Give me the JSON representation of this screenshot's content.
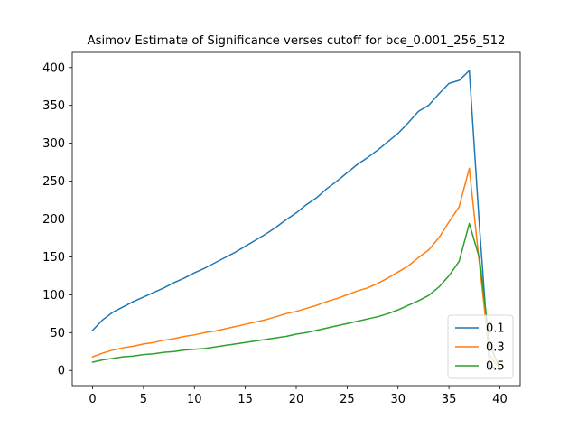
{
  "chart_data": {
    "type": "line",
    "title": "Asimov Estimate of Significance verses cutoff for bce_0.001_256_512",
    "xlabel": "",
    "ylabel": "",
    "xlim": [
      -2,
      42
    ],
    "ylim": [
      -20,
      420
    ],
    "xticks": [
      0,
      5,
      10,
      15,
      20,
      25,
      30,
      35,
      40
    ],
    "yticks": [
      0,
      50,
      100,
      150,
      200,
      250,
      300,
      350,
      400
    ],
    "grid": false,
    "legend_position": "lower-right",
    "series": [
      {
        "name": "0.1",
        "color": "#1f77b4",
        "x": [
          0,
          1,
          2,
          3,
          4,
          5,
          6,
          7,
          8,
          9,
          10,
          11,
          12,
          13,
          14,
          15,
          16,
          17,
          18,
          19,
          20,
          21,
          22,
          23,
          24,
          25,
          26,
          27,
          28,
          29,
          30,
          31,
          32,
          33,
          34,
          35,
          36,
          37,
          38,
          39,
          40
        ],
        "y": [
          53,
          67,
          77,
          84,
          91,
          97,
          103,
          109,
          116,
          122,
          129,
          135,
          142,
          149,
          156,
          164,
          172,
          180,
          189,
          199,
          208,
          219,
          228,
          240,
          250,
          261,
          272,
          281,
          291,
          302,
          313,
          327,
          342,
          350,
          365,
          379,
          383,
          396,
          190,
          5,
          2
        ]
      },
      {
        "name": "0.3",
        "color": "#ff7f0e",
        "x": [
          0,
          1,
          2,
          3,
          4,
          5,
          6,
          7,
          8,
          9,
          10,
          11,
          12,
          13,
          14,
          15,
          16,
          17,
          18,
          19,
          20,
          21,
          22,
          23,
          24,
          25,
          26,
          27,
          28,
          29,
          30,
          31,
          32,
          33,
          34,
          35,
          36,
          37,
          38,
          39,
          40
        ],
        "y": [
          18,
          23,
          27,
          30,
          32,
          35,
          37,
          40,
          42,
          45,
          47,
          50,
          52,
          55,
          58,
          61,
          64,
          67,
          71,
          75,
          78,
          82,
          86,
          91,
          95,
          100,
          105,
          109,
          115,
          122,
          130,
          138,
          149,
          159,
          175,
          196,
          216,
          267,
          140,
          20,
          2
        ]
      },
      {
        "name": "0.5",
        "color": "#2ca02c",
        "x": [
          0,
          1,
          2,
          3,
          4,
          5,
          6,
          7,
          8,
          9,
          10,
          11,
          12,
          13,
          14,
          15,
          16,
          17,
          18,
          19,
          20,
          21,
          22,
          23,
          24,
          25,
          26,
          27,
          28,
          29,
          30,
          31,
          32,
          33,
          34,
          35,
          36,
          37,
          38,
          39,
          40
        ],
        "y": [
          11,
          14,
          16,
          18,
          19,
          21,
          22,
          24,
          25,
          27,
          28,
          29,
          31,
          33,
          35,
          37,
          39,
          41,
          43,
          45,
          48,
          50,
          53,
          56,
          59,
          62,
          65,
          68,
          71,
          75,
          80,
          86,
          92,
          99,
          110,
          125,
          144,
          194,
          148,
          35,
          2
        ]
      }
    ]
  }
}
